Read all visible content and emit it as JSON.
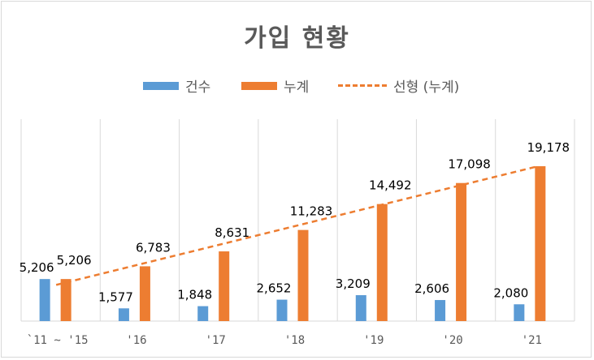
{
  "chart_data": {
    "type": "bar",
    "title": "가입 현황",
    "categories": [
      "`11 ~ '15",
      "'16",
      "'17",
      "'18",
      "'19",
      "'20",
      "'21"
    ],
    "series": [
      {
        "name": "건수",
        "type": "bar",
        "color": "#5b9bd5",
        "values": [
          5206,
          1577,
          1848,
          2652,
          3209,
          2606,
          2080
        ]
      },
      {
        "name": "누계",
        "type": "bar",
        "color": "#ed7d31",
        "values": [
          5206,
          6783,
          8631,
          11283,
          14492,
          17098,
          19178
        ]
      }
    ],
    "trendline": {
      "name": "선형 (누계)",
      "color": "#ed7d31",
      "style": "dashed",
      "of_series": "누계"
    },
    "value_labels": {
      "건수": [
        "5,206",
        "1,577",
        "1,848",
        "2,652",
        "3,209",
        "2,606",
        "2,080"
      ],
      "누계": [
        "5,206",
        "6,783",
        "8,631",
        "11,283",
        "14,492",
        "17,098",
        "19,178"
      ]
    },
    "ylim": [
      0,
      25000
    ],
    "grid": "vertical",
    "legend_position": "top"
  }
}
